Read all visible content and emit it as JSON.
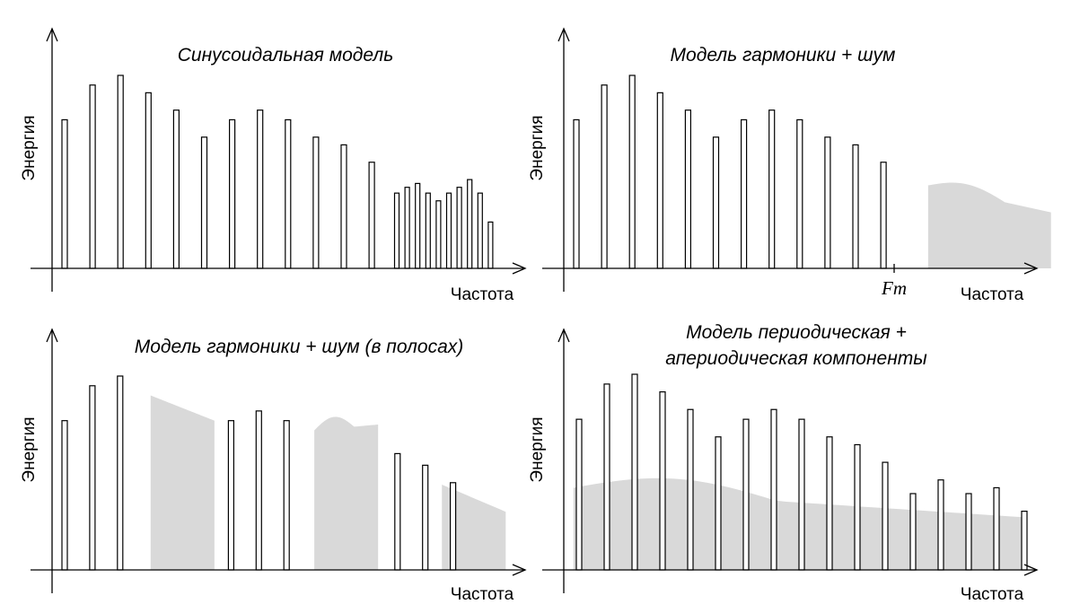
{
  "colors": {
    "bar_stroke": "#000000",
    "bar_fill": "#ffffff",
    "noise_fill": "#d9d9d9",
    "axis": "#000000"
  },
  "panels": [
    {
      "title_lines": [
        "Синусоидальная модель"
      ],
      "ylabel": "Энергия",
      "xlabel": "Частота",
      "marker_label": "",
      "harmonic_heights": [
        0.77,
        0.95,
        1.0,
        0.91,
        0.82,
        0.68,
        0.77,
        0.82,
        0.77,
        0.68,
        0.64,
        0.55
      ],
      "dense_heights": [
        0.39,
        0.42,
        0.44,
        0.39,
        0.35,
        0.39,
        0.42,
        0.46,
        0.39,
        0.24
      ],
      "noise_regions": []
    },
    {
      "title_lines": [
        "Модель гармоники + шум"
      ],
      "ylabel": "Энергия",
      "xlabel": "Частота",
      "marker_label": "Fm",
      "harmonic_heights": [
        0.77,
        0.95,
        1.0,
        0.91,
        0.82,
        0.68,
        0.77,
        0.82,
        0.77,
        0.68,
        0.64,
        0.55
      ],
      "dense_heights": [],
      "noise_regions": [
        {
          "x_from": 12.6,
          "x_to": 17.0,
          "y_start": 0.43,
          "y_end": 0.29,
          "bump": 0.05
        }
      ]
    },
    {
      "title_lines": [
        "Модель гармоники + шум (в полосах)"
      ],
      "ylabel": "Энергия",
      "xlabel": "Частота",
      "marker_label": "",
      "harmonic_heights": [
        0.77,
        0.95,
        1.0,
        null,
        null,
        null,
        0.77,
        0.82,
        0.77,
        null,
        null,
        null,
        0.6,
        0.54,
        0.45
      ],
      "dense_heights": [],
      "noise_regions": [
        {
          "x_from": 3.1,
          "x_to": 5.4,
          "y_start": 0.9,
          "y_end": 0.77,
          "bump": 0
        },
        {
          "x_from": 9.0,
          "x_to": 11.3,
          "y_start": 0.72,
          "y_end": 0.75,
          "bump": 0.06
        },
        {
          "x_from": 13.6,
          "x_to": 15.9,
          "y_start": 0.44,
          "y_end": 0.3,
          "bump": 0
        }
      ]
    },
    {
      "title_lines": [
        "Модель периодическая +",
        "апериодическая компоненты"
      ],
      "ylabel": "Энергия",
      "xlabel": "Частота",
      "marker_label": "",
      "harmonic_heights": [
        0.77,
        0.95,
        1.0,
        0.91,
        0.82,
        0.68,
        0.77,
        0.82,
        0.77,
        0.68,
        0.64,
        0.55,
        0.39,
        0.46,
        0.39,
        0.42,
        0.3
      ],
      "dense_heights": [],
      "noise_regions": [
        {
          "x_from": -0.2,
          "x_to": 15.9,
          "y_start": 0.42,
          "y_end": 0.27,
          "bump": 0.08,
          "full": true
        }
      ]
    }
  ]
}
